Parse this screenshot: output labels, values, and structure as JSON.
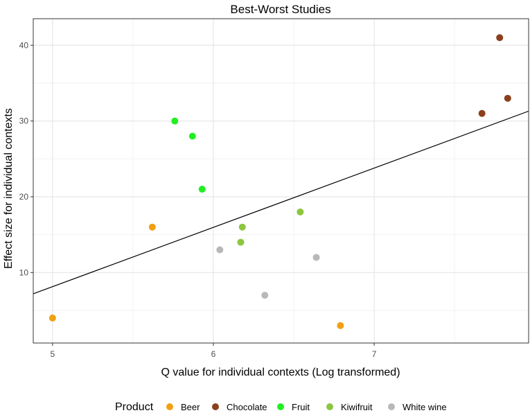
{
  "chart_data": {
    "type": "scatter",
    "title": "Best-Worst Studies",
    "xlabel": "Q value for individual contexts (Log transformed)",
    "ylabel": "Effect size for individual contexts",
    "xlim": [
      4.88,
      7.96
    ],
    "ylim": [
      0.7,
      43.5
    ],
    "x_ticks": [
      5,
      6,
      7
    ],
    "y_ticks": [
      10,
      20,
      30,
      40
    ],
    "grid": true,
    "legend": {
      "title": "Product",
      "placement": "bottom",
      "entries": [
        "Beer",
        "Chocolate",
        "Fruit",
        "Kiwifruit",
        "White wine"
      ]
    },
    "colors": {
      "Beer": "#f0a010",
      "Chocolate": "#8b3f1c",
      "Fruit": "#22ee22",
      "Kiwifruit": "#8cc63f",
      "White wine": "#b8b8b8"
    },
    "series": [
      {
        "name": "Beer",
        "points": [
          [
            5.0,
            4.0
          ],
          [
            5.62,
            16.0
          ],
          [
            6.79,
            3.0
          ]
        ]
      },
      {
        "name": "Chocolate",
        "points": [
          [
            7.78,
            41.0
          ],
          [
            7.83,
            33.0
          ],
          [
            7.67,
            31.0
          ]
        ]
      },
      {
        "name": "Fruit",
        "points": [
          [
            5.76,
            30.0
          ],
          [
            5.87,
            28.0
          ],
          [
            5.93,
            21.0
          ]
        ]
      },
      {
        "name": "Kiwifruit",
        "points": [
          [
            6.18,
            16.0
          ],
          [
            6.17,
            14.0
          ],
          [
            6.54,
            18.0
          ]
        ]
      },
      {
        "name": "White wine",
        "points": [
          [
            6.04,
            13.0
          ],
          [
            6.32,
            7.0
          ],
          [
            6.64,
            12.0
          ]
        ]
      }
    ],
    "trend_line": {
      "x": [
        4.88,
        7.96
      ],
      "y": [
        7.2,
        31.3
      ]
    }
  }
}
